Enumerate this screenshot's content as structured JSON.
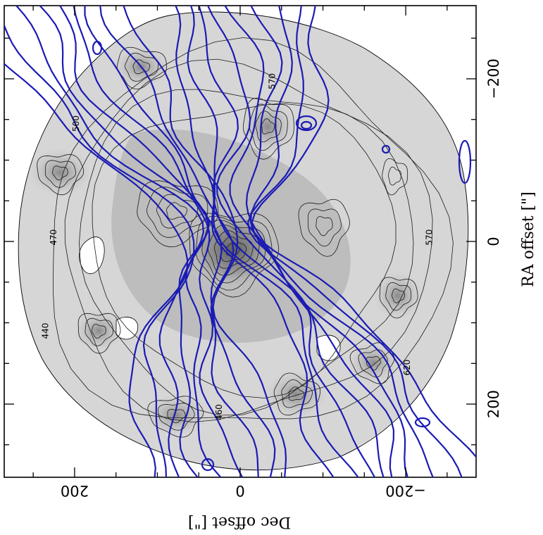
{
  "chart_data": {
    "type": "contour",
    "xlabel": "Dec offset  [\"]",
    "ylabel": "RA offset  [\"]",
    "x_ticks": [
      200,
      0,
      -200
    ],
    "y_ticks": [
      -200,
      0,
      200
    ],
    "x_tick_labels": [
      "200",
      "0",
      "−200"
    ],
    "y_tick_labels": [
      "−200",
      "0",
      "200"
    ],
    "xlim": [
      285,
      -285
    ],
    "ylim": [
      -290,
      290
    ],
    "velocity_contour_labels": [
      {
        "text": "570",
        "x": -42,
        "y": -197
      },
      {
        "text": "500",
        "x": 195,
        "y": -145
      },
      {
        "text": "470",
        "x": 222,
        "y": -5
      },
      {
        "text": "440",
        "x": 232,
        "y": 110
      },
      {
        "text": "460",
        "x": 22,
        "y": 210
      },
      {
        "text": "570",
        "x": -232,
        "y": -5
      },
      {
        "text": "620",
        "x": -205,
        "y": 155
      }
    ],
    "colors": {
      "intensity_contours": "#000000",
      "velocity_contours": "#1b1bb4",
      "background_gray": "#d0d0d0"
    }
  }
}
